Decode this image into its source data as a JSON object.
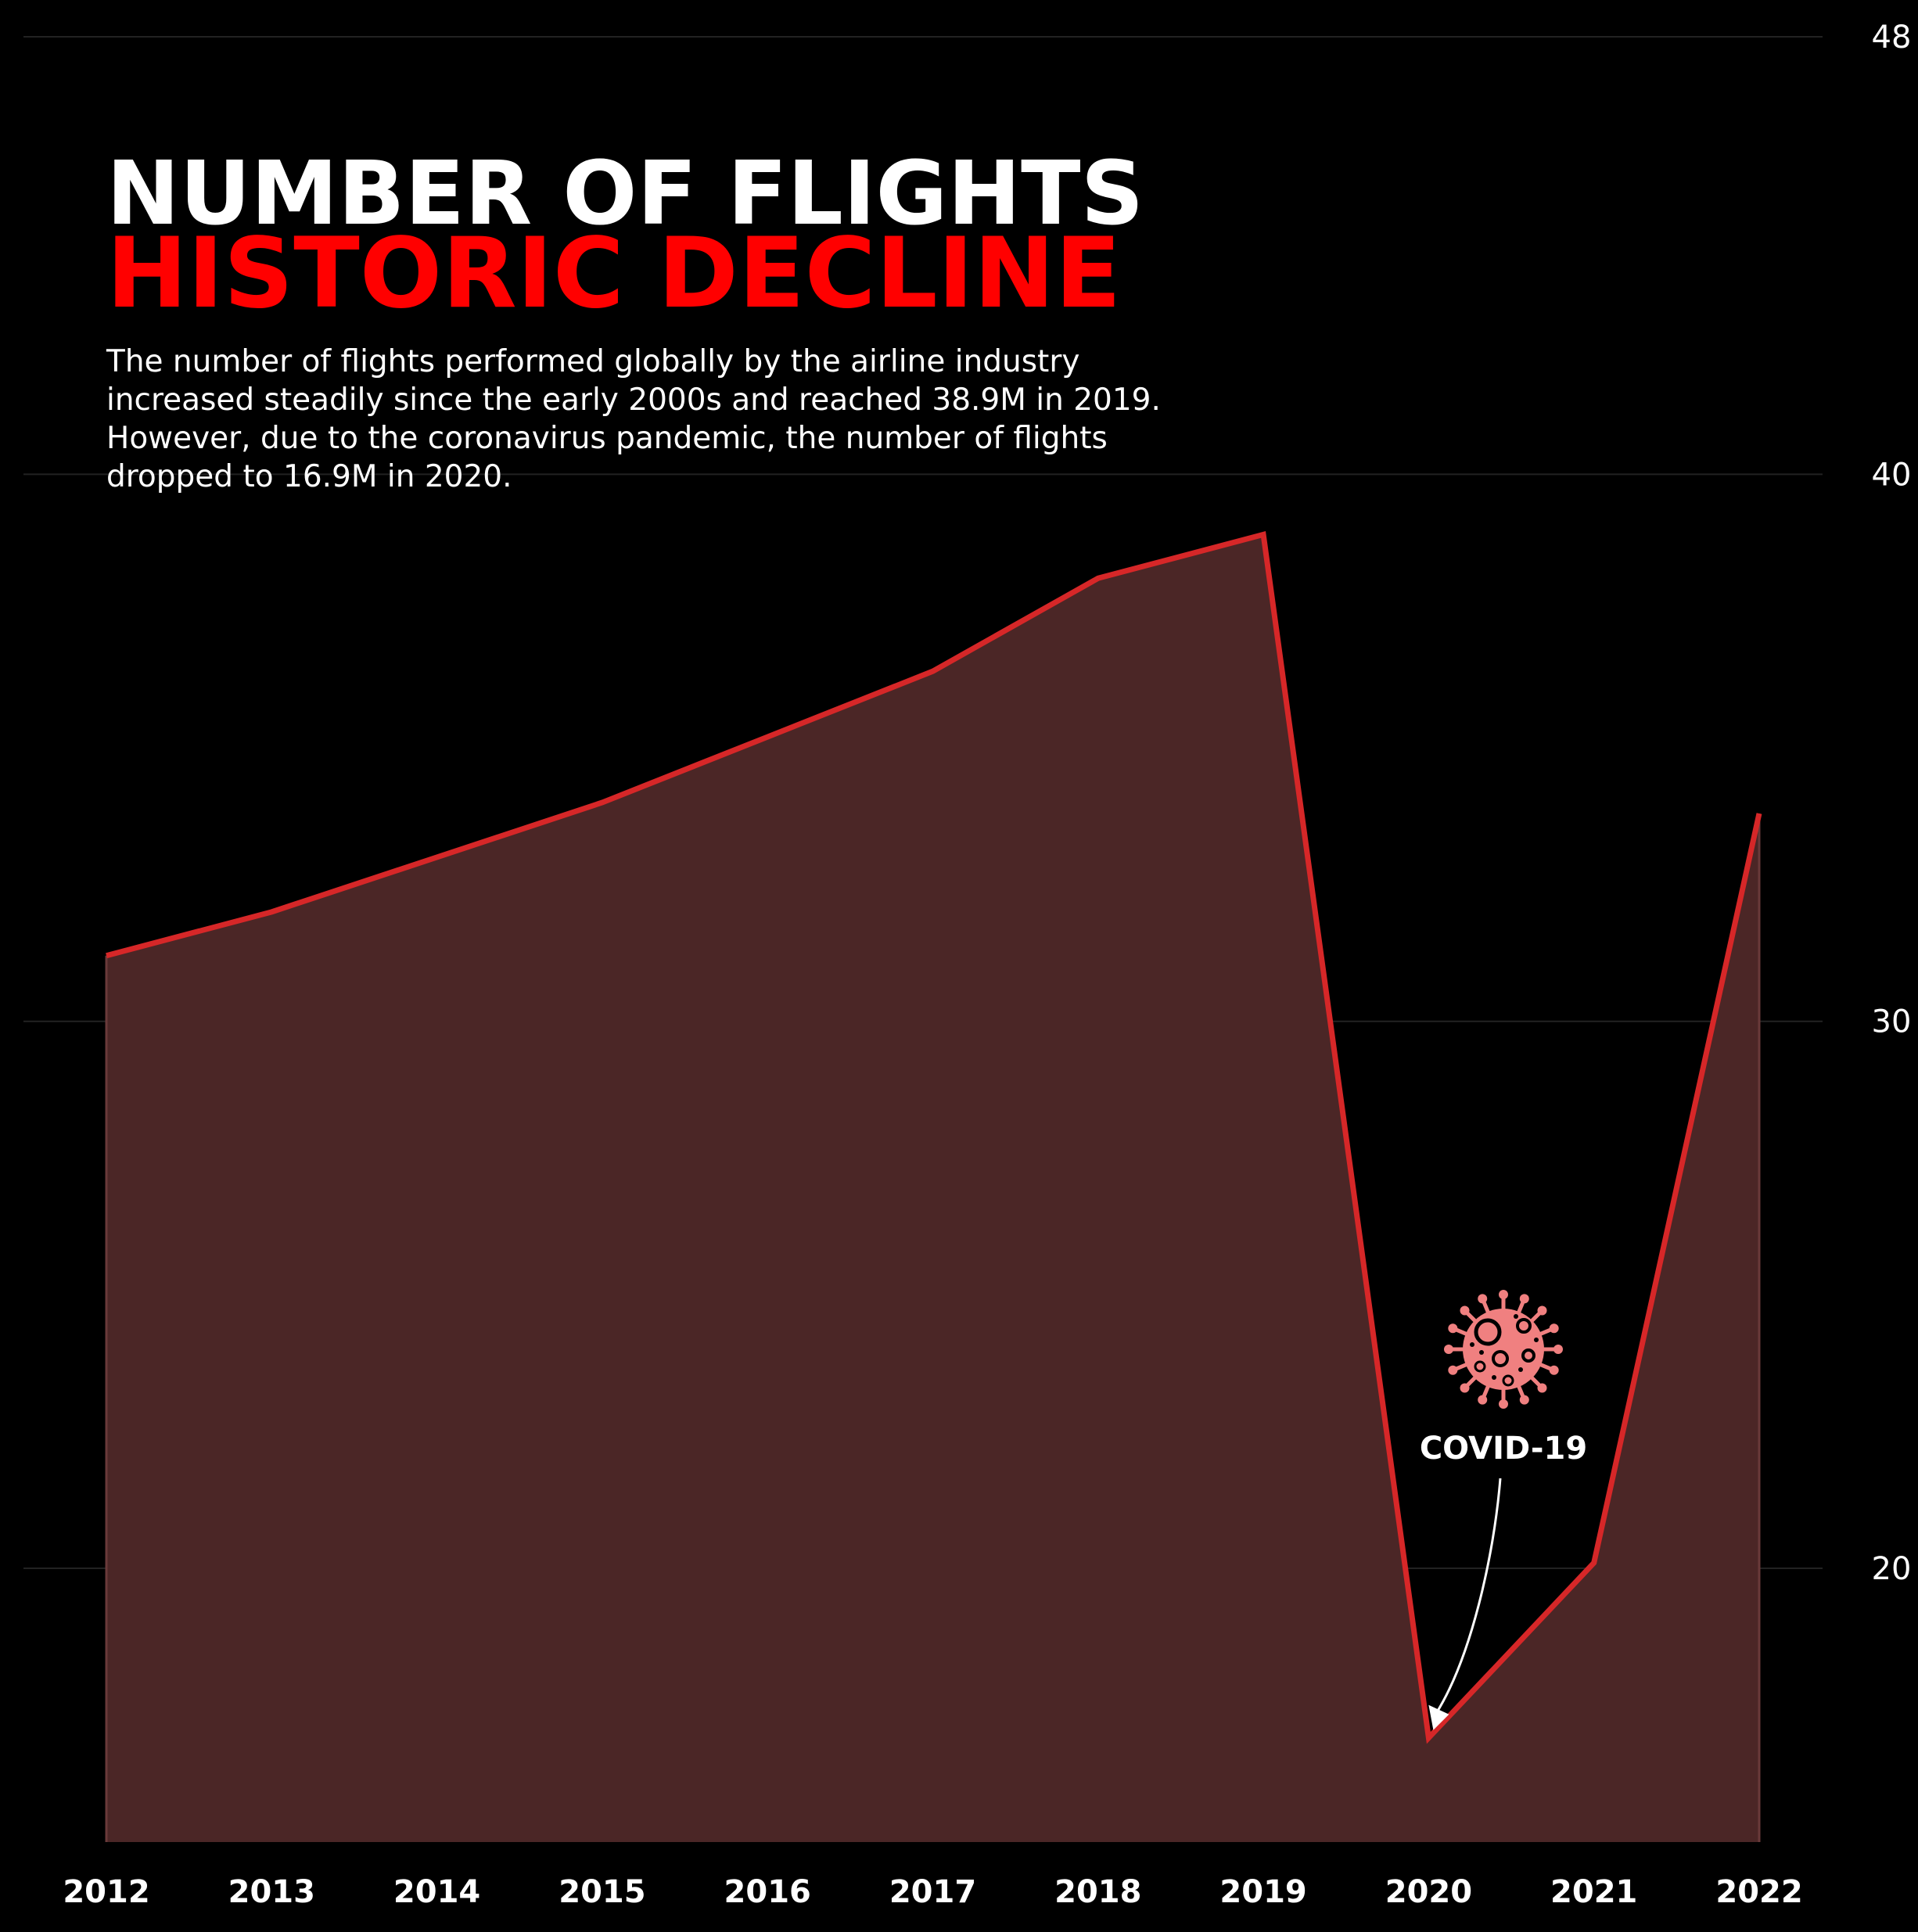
{
  "title_line1": "NUMBER OF FLIGHTS",
  "title_line2": "HISTORIC DECLINE",
  "subtitle": "The number of flights performed globally by the airline industry increased steadily since the early 2000s and reached 38.9M in 2019. However, due to the coronavirus pandemic, the number of flights dropped to 16.9M in 2020.",
  "colors": {
    "background": "#000000",
    "title_primary": "#ffffff",
    "title_accent": "#ff0000",
    "line": "#d62728",
    "fill": "#4b2626",
    "grid": "#222222",
    "virus_icon": "#f08080"
  },
  "chart_data": {
    "type": "area",
    "x": [
      "2012",
      "2013",
      "2014",
      "2015",
      "2016",
      "2017",
      "2018",
      "2019",
      "2020",
      "2021",
      "2022"
    ],
    "series": [
      {
        "values": [
          31.2,
          32.0,
          33.0,
          34.0,
          35.2,
          36.4,
          38.1,
          38.9,
          16.9,
          20.1,
          33.8
        ]
      }
    ],
    "ylim": [
      15,
      48
    ],
    "yticks": [
      "20",
      "30",
      "40",
      "48"
    ],
    "y_axis_position": "right",
    "grid": true,
    "annotation": {
      "label": "COVID-19",
      "x": "2020",
      "y": 16.9,
      "icon": "virus-icon"
    }
  }
}
